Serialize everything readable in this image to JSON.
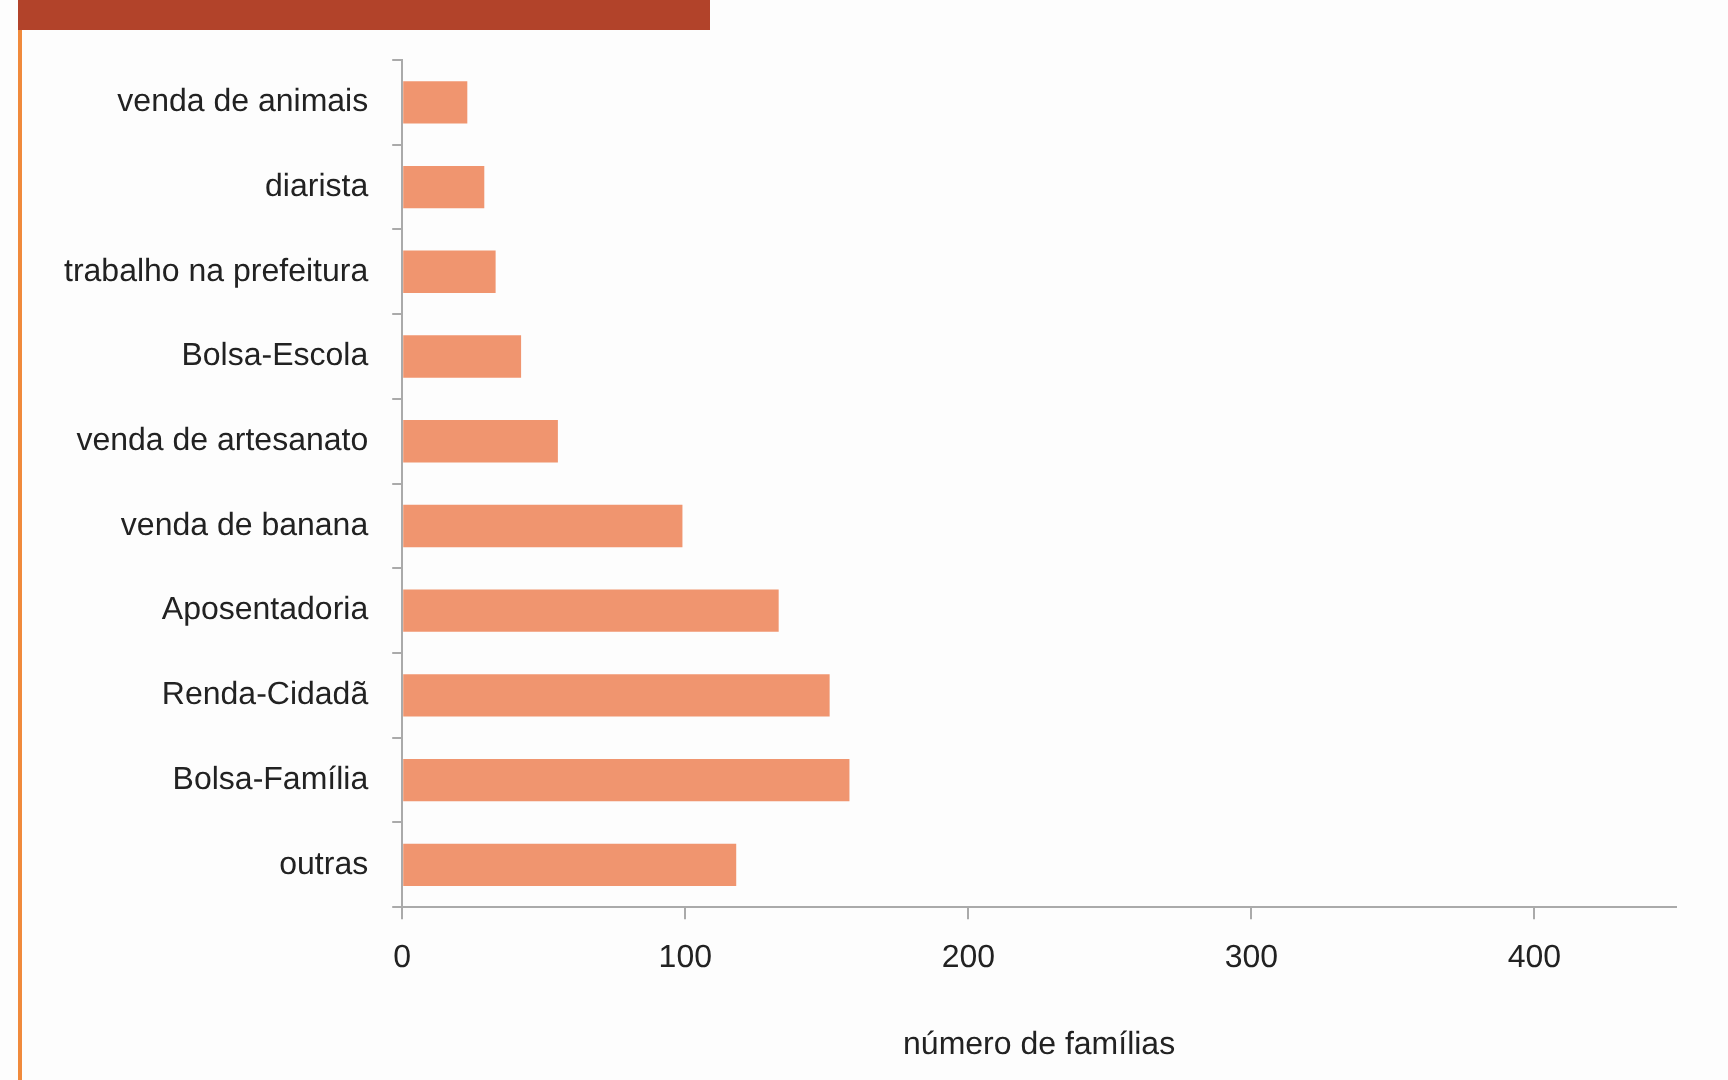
{
  "chart_data": {
    "type": "bar",
    "orientation": "horizontal",
    "xlabel": "número de famílias",
    "categories": [
      "venda de animais",
      "diarista",
      "trabalho na prefeitura",
      "Bolsa-Escola",
      "venda de artesanato",
      "venda de banana",
      "Aposentadoria",
      "Renda-Cidadã",
      "Bolsa-Família",
      "outras"
    ],
    "values": [
      23,
      29,
      33,
      42,
      55,
      99,
      133,
      151,
      158,
      118
    ],
    "color": "#f0956f",
    "xlim": [
      0,
      450
    ],
    "xticks": [
      0,
      100,
      200,
      300,
      400
    ],
    "grid": false,
    "legend": false
  }
}
